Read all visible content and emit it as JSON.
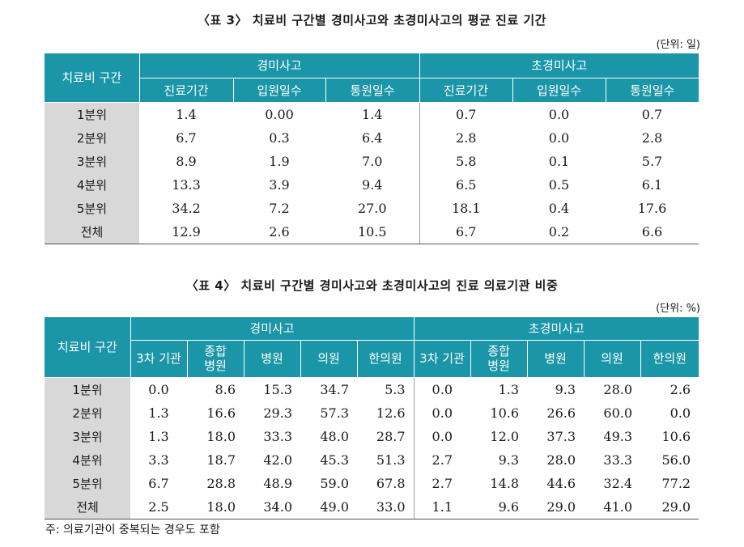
{
  "table3": {
    "title": "〈표 3〉 치료비 구간별 경미사고와 초경미사고의 평균 진료 기간",
    "unit": "(단위: 일)",
    "row_header": "치료비 구간",
    "groups": [
      "경미사고",
      "초경미사고"
    ],
    "columns": [
      "진료기간",
      "입원일수",
      "통원일수",
      "진료기간",
      "입원일수",
      "통원일수"
    ],
    "rows": [
      {
        "label": "1분위",
        "values": [
          "1.4",
          "0.00",
          "1.4",
          "0.7",
          "0.0",
          "0.7"
        ]
      },
      {
        "label": "2분위",
        "values": [
          "6.7",
          "0.3",
          "6.4",
          "2.8",
          "0.0",
          "2.8"
        ]
      },
      {
        "label": "3분위",
        "values": [
          "8.9",
          "1.9",
          "7.0",
          "5.8",
          "0.1",
          "5.7"
        ]
      },
      {
        "label": "4분위",
        "values": [
          "13.3",
          "3.9",
          "9.4",
          "6.5",
          "0.5",
          "6.1"
        ]
      },
      {
        "label": "5분위",
        "values": [
          "34.2",
          "7.2",
          "27.0",
          "18.1",
          "0.4",
          "17.6"
        ]
      },
      {
        "label": "전체",
        "values": [
          "12.9",
          "2.6",
          "10.5",
          "6.7",
          "0.2",
          "6.6"
        ]
      }
    ]
  },
  "table4": {
    "title": "〈표 4〉 치료비 구간별 경미사고와 초경미사고의 진료 의료기관 비중",
    "unit": "(단위: %)",
    "row_header": "치료비 구간",
    "groups": [
      "경미사고",
      "초경미사고"
    ],
    "columns": [
      {
        "l1": "3차 기관",
        "l2": ""
      },
      {
        "l1": "종합",
        "l2": "병원"
      },
      {
        "l1": "병원",
        "l2": ""
      },
      {
        "l1": "의원",
        "l2": ""
      },
      {
        "l1": "한의원",
        "l2": ""
      },
      {
        "l1": "3차 기관",
        "l2": ""
      },
      {
        "l1": "종합",
        "l2": "병원"
      },
      {
        "l1": "병원",
        "l2": ""
      },
      {
        "l1": "의원",
        "l2": ""
      },
      {
        "l1": "한의원",
        "l2": ""
      }
    ],
    "rows": [
      {
        "label": "1분위",
        "values": [
          "0.0",
          "8.6",
          "15.3",
          "34.7",
          "5.3",
          "0.0",
          "1.3",
          "9.3",
          "28.0",
          "2.6"
        ]
      },
      {
        "label": "2분위",
        "values": [
          "1.3",
          "16.6",
          "29.3",
          "57.3",
          "12.6",
          "0.0",
          "10.6",
          "26.6",
          "60.0",
          "0.0"
        ]
      },
      {
        "label": "3분위",
        "values": [
          "1.3",
          "18.0",
          "33.3",
          "48.0",
          "28.7",
          "0.0",
          "12.0",
          "37.3",
          "49.3",
          "10.6"
        ]
      },
      {
        "label": "4분위",
        "values": [
          "3.3",
          "18.7",
          "42.0",
          "45.3",
          "51.3",
          "2.7",
          "9.3",
          "28.0",
          "33.3",
          "56.0"
        ]
      },
      {
        "label": "5분위",
        "values": [
          "6.7",
          "28.8",
          "48.9",
          "59.0",
          "67.8",
          "2.7",
          "14.8",
          "44.6",
          "32.4",
          "77.2"
        ]
      },
      {
        "label": "전체",
        "values": [
          "2.5",
          "18.0",
          "34.0",
          "49.0",
          "33.0",
          "1.1",
          "9.6",
          "29.0",
          "41.0",
          "29.0"
        ]
      }
    ],
    "note": "주: 의료기관이 중복되는 경우도 포함"
  }
}
